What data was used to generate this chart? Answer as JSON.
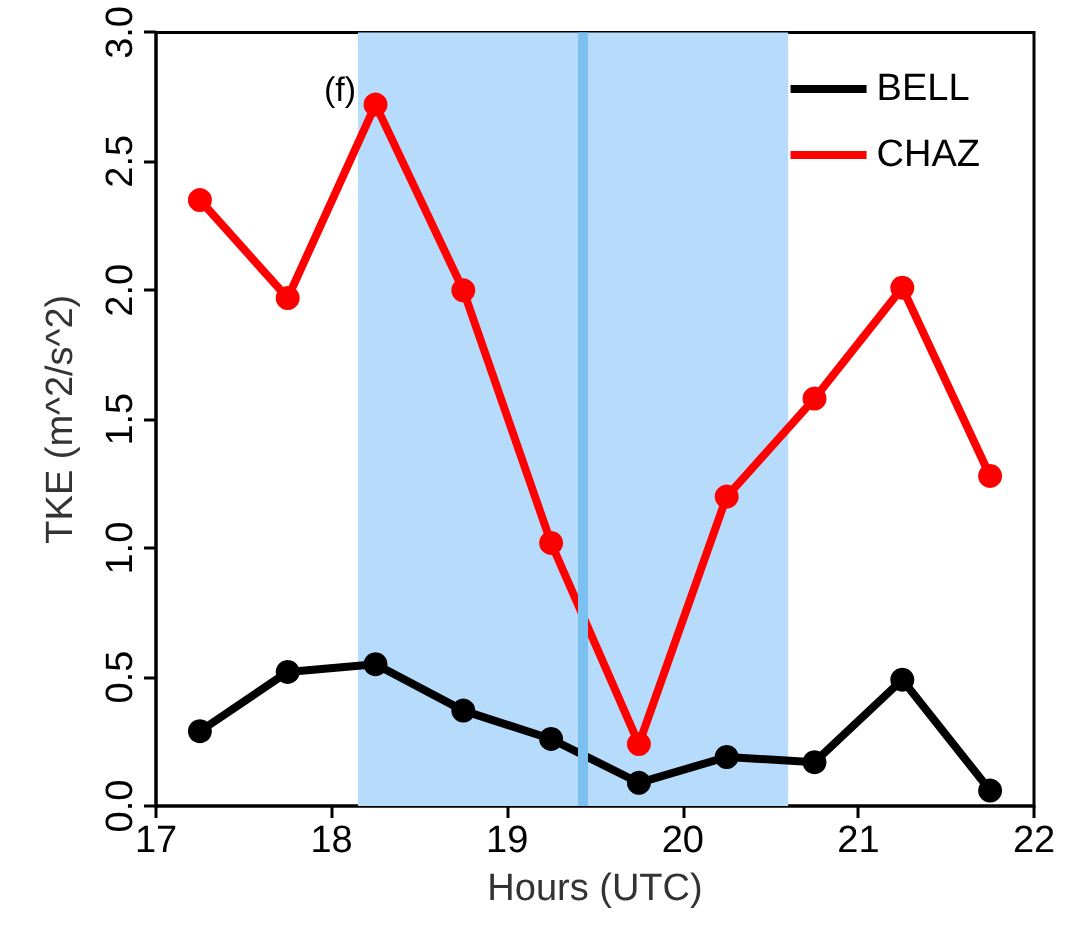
{
  "chart_data": {
    "type": "line",
    "xlabel": "Hours (UTC)",
    "ylabel": "TKE (m^2/s^2)",
    "x": [
      17.25,
      17.75,
      18.25,
      18.75,
      19.25,
      19.75,
      20.25,
      20.75,
      21.25,
      21.75
    ],
    "series": [
      {
        "name": "BELL",
        "color": "#000000",
        "values": [
          0.29,
          0.52,
          0.55,
          0.37,
          0.26,
          0.09,
          0.19,
          0.17,
          0.49,
          0.06
        ]
      },
      {
        "name": "CHAZ",
        "color": "#ff0000",
        "values": [
          2.35,
          1.97,
          2.72,
          2.0,
          1.02,
          0.24,
          1.2,
          1.58,
          2.01,
          1.28
        ]
      }
    ],
    "xlim": [
      17,
      22
    ],
    "xticks": [
      17,
      18,
      19,
      20,
      21,
      22
    ],
    "ylim": [
      0,
      3
    ],
    "yticks": [
      {
        "value": 0,
        "label": "0.0"
      },
      {
        "value": 0.5,
        "label": "0.5"
      },
      {
        "value": 1,
        "label": "1.0"
      },
      {
        "value": 1.5,
        "label": "1.5"
      },
      {
        "value": 2,
        "label": "2.0"
      },
      {
        "value": 2.5,
        "label": "2.5"
      },
      {
        "value": 3,
        "label": "3.0"
      }
    ],
    "bands": [
      {
        "axis": "x",
        "from": 18.15,
        "to": 20.6,
        "color": "#b7dbfa"
      }
    ],
    "ref_lines": [
      {
        "axis": "x",
        "value": 19.43,
        "color": "#7cc0f2",
        "line_style": "solid"
      }
    ],
    "annotations": [
      "(f)"
    ],
    "legend": "top right",
    "marker": "circle",
    "line_style": "solid",
    "grid": false
  }
}
